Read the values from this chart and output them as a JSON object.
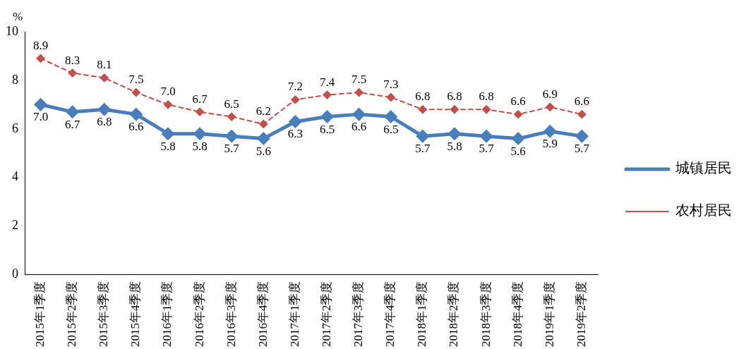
{
  "chart_data": {
    "type": "line",
    "ylabel": "%",
    "categories": [
      "2015年1季度",
      "2015年2季度",
      "2015年3季度",
      "2015年4季度",
      "2016年1季度",
      "2016年2季度",
      "2016年3季度",
      "2016年4季度",
      "2017年1季度",
      "2017年2季度",
      "2017年3季度",
      "2017年4季度",
      "2018年1季度",
      "2018年2季度",
      "2018年3季度",
      "2018年4季度",
      "2019年1季度",
      "2019年2季度"
    ],
    "series": [
      {
        "name": "城镇居民",
        "color": "#4a7ebb",
        "line_style": "solid",
        "values": [
          7.0,
          6.7,
          6.8,
          6.6,
          5.8,
          5.8,
          5.7,
          5.6,
          6.3,
          6.5,
          6.6,
          6.5,
          5.7,
          5.8,
          5.7,
          5.6,
          5.9,
          5.7
        ],
        "value_labels": [
          "7.0",
          "6.7",
          "6.8",
          "6.6",
          "5.8",
          "5.8",
          "5.7",
          "5.6",
          "6.3",
          "6.5",
          "6.6",
          "6.5",
          "5.7",
          "5.8",
          "5.7",
          "5.6",
          "5.9",
          "5.7"
        ]
      },
      {
        "name": "农村居民",
        "color": "#c0504d",
        "line_style": "dashed",
        "values": [
          8.9,
          8.3,
          8.1,
          7.5,
          7.0,
          6.7,
          6.5,
          6.2,
          7.2,
          7.4,
          7.5,
          7.3,
          6.8,
          6.8,
          6.8,
          6.6,
          6.9,
          6.6
        ],
        "value_labels": [
          "8.9",
          "8.3",
          "8.1",
          "7.5",
          "7.0",
          "6.7",
          "6.5",
          "6.2",
          "7.2",
          "7.4",
          "7.5",
          "7.3",
          "6.8",
          "6.8",
          "6.8",
          "6.6",
          "6.9",
          "6.6"
        ]
      }
    ],
    "ylim": [
      0,
      10
    ],
    "yticks": [
      0,
      2,
      4,
      6,
      8,
      10
    ],
    "grid": false,
    "legend": "right",
    "marker": "diamond"
  }
}
